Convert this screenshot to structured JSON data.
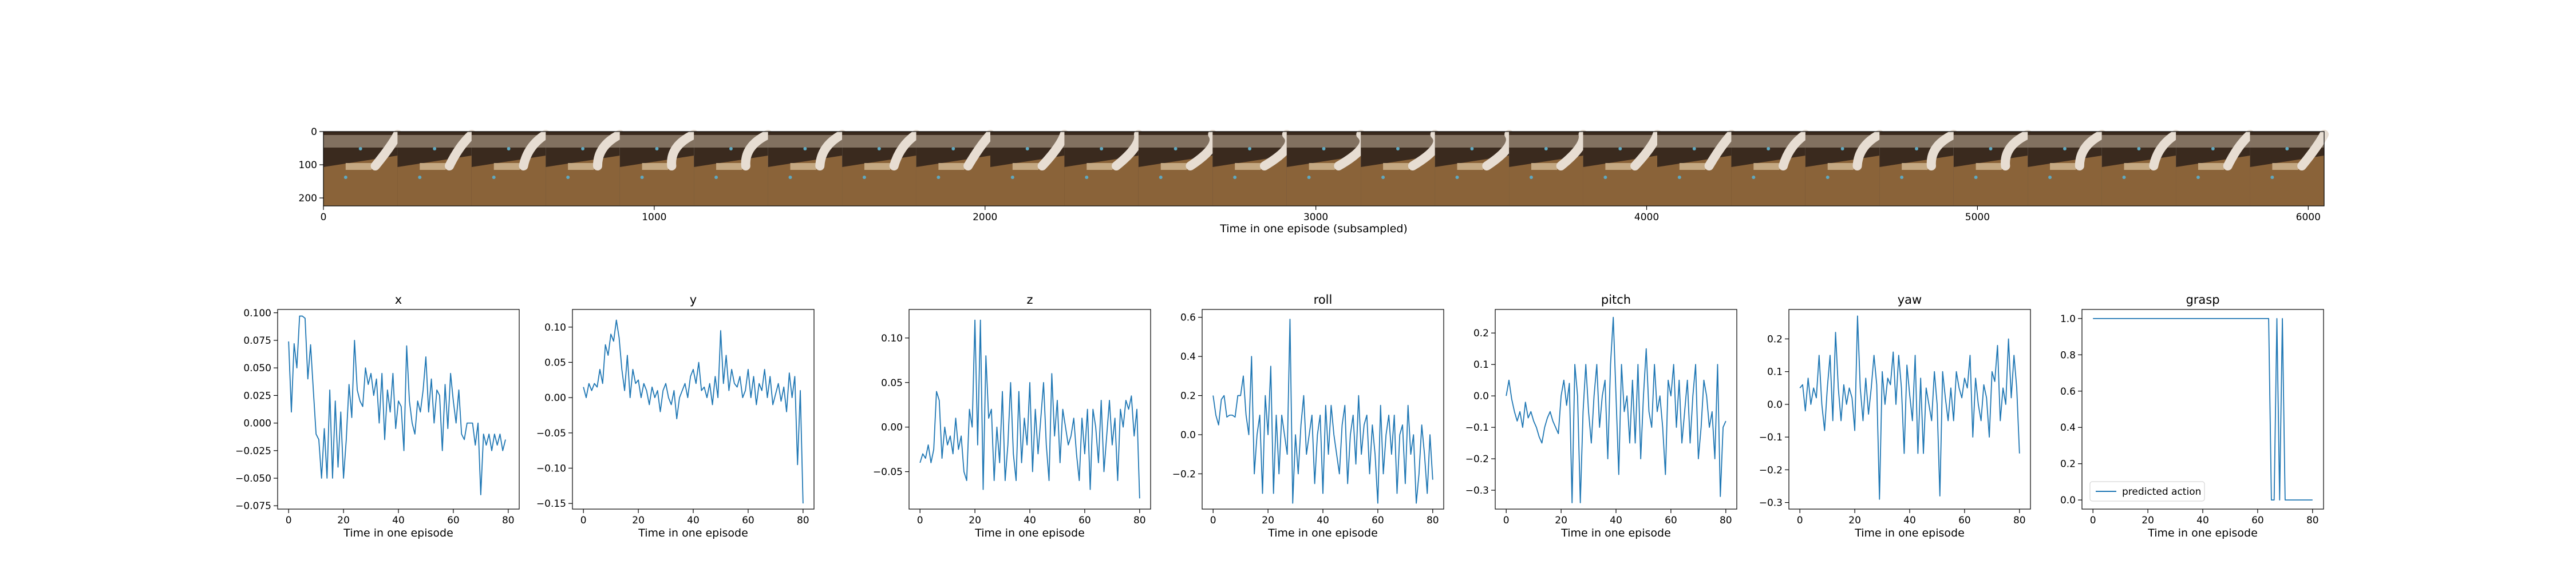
{
  "filmstrip": {
    "xlabel": "Time in one episode (subsampled)",
    "x_ticks": [
      0,
      1000,
      2000,
      3000,
      4000,
      5000,
      6000
    ],
    "y_ticks": [
      0,
      100,
      200
    ],
    "xlim": [
      0,
      6048
    ],
    "ylim": [
      224,
      0
    ],
    "frame_count": 27,
    "colors": {
      "table": "#8a6339",
      "background": "#3a2a1e",
      "arm": "#e7ddd2",
      "wall": "#c9b8a2"
    }
  },
  "line_color": "#1f77b4",
  "chart_data": [
    {
      "type": "line",
      "title": "x",
      "xlabel": "Time in one episode",
      "x_ticks": [
        0,
        20,
        40,
        60,
        80
      ],
      "y_ticks": [
        -0.075,
        -0.05,
        -0.025,
        0.0,
        0.025,
        0.05,
        0.075,
        0.1
      ],
      "y_tick_labels": [
        "−0.075",
        "−0.050",
        "−0.025",
        "0.000",
        "0.025",
        "0.050",
        "0.075",
        "0.100"
      ],
      "xlim": [
        -4,
        84
      ],
      "ylim": [
        -0.078,
        0.103
      ],
      "series": [
        {
          "values": [
            0.074,
            0.01,
            0.072,
            0.05,
            0.097,
            0.097,
            0.095,
            0.04,
            0.071,
            0.03,
            -0.01,
            -0.015,
            -0.05,
            -0.005,
            -0.05,
            0.03,
            -0.05,
            0.02,
            -0.04,
            0.01,
            -0.05,
            -0.015,
            0.035,
            0.005,
            0.075,
            0.03,
            0.02,
            0.015,
            0.05,
            0.035,
            0.045,
            0.025,
            0.04,
            0.0,
            0.045,
            -0.015,
            0.03,
            0.01,
            0.045,
            -0.005,
            0.02,
            0.015,
            -0.025,
            0.07,
            0.02,
            0.0,
            -0.01,
            0.02,
            0.01,
            0.03,
            0.06,
            0.01,
            0.04,
            0.0,
            0.03,
            0.025,
            -0.025,
            0.035,
            -0.005,
            0.045,
            0.02,
            0.0,
            0.03,
            -0.01,
            -0.015,
            0.0,
            0.0,
            0.0,
            -0.02,
            0.0,
            -0.065,
            -0.01,
            -0.02,
            -0.01,
            -0.025,
            -0.01,
            -0.02,
            -0.01,
            -0.025,
            -0.015
          ]
        }
      ]
    },
    {
      "type": "line",
      "title": "y",
      "xlabel": "Time in one episode",
      "x_ticks": [
        0,
        20,
        40,
        60,
        80
      ],
      "y_ticks": [
        -0.15,
        -0.1,
        -0.05,
        0.0,
        0.05,
        0.1
      ],
      "y_tick_labels": [
        "−0.15",
        "−0.10",
        "−0.05",
        "0.00",
        "0.05",
        "0.10"
      ],
      "xlim": [
        -4,
        84
      ],
      "ylim": [
        -0.158,
        0.125
      ],
      "series": [
        {
          "values": [
            0.015,
            0.0,
            0.02,
            0.01,
            0.02,
            0.015,
            0.04,
            0.02,
            0.075,
            0.06,
            0.09,
            0.08,
            0.11,
            0.085,
            0.04,
            0.01,
            0.06,
            0.0,
            0.04,
            0.02,
            0.025,
            0.0,
            0.02,
            0.01,
            -0.01,
            0.015,
            0.0,
            0.01,
            -0.02,
            0.01,
            0.02,
            0.0,
            -0.01,
            0.01,
            -0.03,
            0.0,
            0.01,
            0.02,
            0.0,
            0.03,
            0.04,
            0.02,
            0.05,
            0.01,
            0.015,
            0.0,
            0.02,
            -0.01,
            0.03,
            0.0,
            0.095,
            0.02,
            0.06,
            0.01,
            0.04,
            0.02,
            0.015,
            0.03,
            0.0,
            0.01,
            0.04,
            0.0,
            0.03,
            -0.01,
            0.02,
            0.01,
            0.04,
            0.0,
            0.03,
            -0.01,
            0.005,
            0.02,
            -0.005,
            0.015,
            -0.02,
            0.035,
            0.0,
            0.03,
            -0.095,
            0.01,
            -0.15
          ]
        }
      ]
    },
    {
      "type": "line",
      "title": "z",
      "xlabel": "Time in one episode",
      "x_ticks": [
        0,
        20,
        40,
        60,
        80
      ],
      "y_ticks": [
        -0.05,
        0.0,
        0.05,
        0.1
      ],
      "y_tick_labels": [
        "−0.05",
        "0.00",
        "0.05",
        "0.10"
      ],
      "xlim": [
        -4,
        84
      ],
      "ylim": [
        -0.092,
        0.132
      ],
      "series": [
        {
          "values": [
            -0.04,
            -0.03,
            -0.035,
            -0.02,
            -0.04,
            -0.025,
            0.04,
            0.03,
            -0.035,
            0.0,
            -0.02,
            -0.01,
            -0.03,
            0.01,
            -0.025,
            -0.01,
            -0.05,
            -0.06,
            0.02,
            0.0,
            0.12,
            -0.02,
            0.12,
            -0.07,
            0.08,
            0.01,
            0.02,
            -0.06,
            0.0,
            -0.04,
            0.04,
            -0.06,
            -0.02,
            0.05,
            -0.03,
            -0.06,
            0.04,
            -0.04,
            0.01,
            -0.02,
            0.05,
            -0.05,
            0.02,
            -0.03,
            0.01,
            0.05,
            -0.02,
            -0.06,
            0.06,
            -0.01,
            0.03,
            -0.04,
            0.02,
            0.0,
            -0.02,
            -0.01,
            0.01,
            -0.03,
            -0.06,
            0.01,
            -0.03,
            0.02,
            -0.07,
            0.02,
            0.0,
            -0.04,
            0.03,
            -0.05,
            -0.01,
            0.03,
            -0.02,
            0.01,
            -0.06,
            0.02,
            0.0,
            0.03,
            0.02,
            0.035,
            -0.01,
            0.02,
            -0.08
          ]
        }
      ]
    },
    {
      "type": "line",
      "title": "roll",
      "xlabel": "Time in one episode",
      "x_ticks": [
        0,
        20,
        40,
        60,
        80
      ],
      "y_ticks": [
        -0.2,
        0.0,
        0.2,
        0.4,
        0.6
      ],
      "y_tick_labels": [
        "−0.2",
        "0.0",
        "0.2",
        "0.4",
        "0.6"
      ],
      "xlim": [
        -4,
        84
      ],
      "ylim": [
        -0.38,
        0.64
      ],
      "series": [
        {
          "values": [
            0.2,
            0.1,
            0.05,
            0.18,
            0.2,
            0.09,
            0.1,
            0.1,
            0.09,
            0.2,
            0.2,
            0.3,
            0.1,
            0.0,
            0.4,
            -0.2,
            0.0,
            0.1,
            -0.3,
            0.2,
            0.0,
            0.35,
            -0.3,
            0.1,
            -0.2,
            0.1,
            0.0,
            -0.1,
            0.59,
            -0.35,
            0.0,
            -0.2,
            0.05,
            0.2,
            -0.1,
            0.0,
            0.1,
            -0.25,
            0.0,
            0.1,
            -0.3,
            0.15,
            -0.1,
            0.15,
            0.0,
            -0.1,
            -0.2,
            0.05,
            0.15,
            -0.25,
            0.0,
            0.1,
            -0.15,
            0.2,
            -0.1,
            0.05,
            0.1,
            -0.2,
            0.05,
            -0.1,
            -0.35,
            0.15,
            -0.2,
            0.0,
            0.1,
            -0.1,
            0.1,
            -0.3,
            0.0,
            0.05,
            -0.25,
            0.15,
            -0.1,
            0.0,
            -0.35,
            -0.2,
            0.05,
            -0.1,
            -0.3,
            0.0,
            -0.23
          ]
        }
      ]
    },
    {
      "type": "line",
      "title": "pitch",
      "xlabel": "Time in one episode",
      "x_ticks": [
        0,
        20,
        40,
        60,
        80
      ],
      "y_ticks": [
        -0.3,
        -0.2,
        -0.1,
        0.0,
        0.1,
        0.2
      ],
      "y_tick_labels": [
        "−0.3",
        "−0.2",
        "−0.1",
        "0.0",
        "0.1",
        "0.2"
      ],
      "xlim": [
        -4,
        84
      ],
      "ylim": [
        -0.36,
        0.275
      ],
      "series": [
        {
          "values": [
            0.0,
            0.05,
            -0.01,
            -0.05,
            -0.08,
            -0.05,
            -0.1,
            -0.02,
            -0.07,
            -0.05,
            -0.08,
            -0.1,
            -0.13,
            -0.15,
            -0.1,
            -0.07,
            -0.05,
            -0.08,
            -0.1,
            -0.12,
            0.0,
            0.05,
            -0.03,
            0.04,
            -0.34,
            0.1,
            0.0,
            -0.34,
            -0.05,
            0.1,
            -0.05,
            -0.15,
            0.0,
            0.1,
            -0.1,
            0.0,
            0.05,
            -0.2,
            0.1,
            0.25,
            0.0,
            -0.25,
            0.1,
            -0.05,
            0.0,
            -0.15,
            0.05,
            -0.15,
            0.1,
            -0.2,
            0.0,
            0.15,
            -0.05,
            -0.1,
            0.1,
            -0.05,
            0.0,
            -0.1,
            -0.25,
            0.05,
            0.0,
            0.1,
            -0.1,
            0.05,
            -0.15,
            -0.05,
            0.05,
            -0.15,
            0.0,
            0.1,
            -0.2,
            -0.1,
            0.05,
            0.0,
            -0.1,
            -0.05,
            -0.2,
            0.1,
            -0.32,
            -0.1,
            -0.08
          ]
        }
      ]
    },
    {
      "type": "line",
      "title": "yaw",
      "xlabel": "Time in one episode",
      "x_ticks": [
        0,
        20,
        40,
        60,
        80
      ],
      "y_ticks": [
        -0.3,
        -0.2,
        -0.1,
        0.0,
        0.1,
        0.2
      ],
      "y_tick_labels": [
        "−0.3",
        "−0.2",
        "−0.1",
        "0.0",
        "0.1",
        "0.2"
      ],
      "xlim": [
        -4,
        84
      ],
      "ylim": [
        -0.32,
        0.29
      ],
      "series": [
        {
          "values": [
            0.05,
            0.06,
            -0.02,
            0.08,
            0.0,
            0.05,
            0.02,
            0.15,
            0.0,
            -0.08,
            0.05,
            0.15,
            -0.05,
            0.22,
            0.05,
            -0.05,
            0.06,
            0.0,
            0.05,
            0.02,
            -0.08,
            0.27,
            0.05,
            -0.05,
            0.08,
            -0.03,
            0.05,
            0.15,
            0.06,
            -0.29,
            0.1,
            0.0,
            0.08,
            0.06,
            0.16,
            0.0,
            0.15,
            0.05,
            -0.15,
            0.12,
            0.03,
            -0.05,
            0.15,
            -0.15,
            0.08,
            -0.15,
            0.05,
            0.0,
            -0.05,
            0.1,
            0.0,
            -0.28,
            0.1,
            0.02,
            -0.05,
            0.05,
            -0.05,
            0.1,
            0.05,
            0.02,
            0.08,
            0.05,
            0.15,
            -0.1,
            0.08,
            0.0,
            -0.05,
            0.06,
            0.02,
            -0.1,
            0.1,
            0.07,
            0.18,
            -0.05,
            0.05,
            0.0,
            0.2,
            0.02,
            0.15,
            0.05,
            -0.15
          ]
        }
      ]
    },
    {
      "type": "line",
      "title": "grasp",
      "xlabel": "Time in one episode",
      "x_ticks": [
        0,
        20,
        40,
        60,
        80
      ],
      "y_ticks": [
        0.0,
        0.2,
        0.4,
        0.6,
        0.8,
        1.0
      ],
      "y_tick_labels": [
        "0.0",
        "0.2",
        "0.4",
        "0.6",
        "0.8",
        "1.0"
      ],
      "xlim": [
        -4,
        84
      ],
      "ylim": [
        -0.05,
        1.05
      ],
      "legend_position": "lower-left",
      "series": [
        {
          "name": "predicted action",
          "values": [
            1,
            1,
            1,
            1,
            1,
            1,
            1,
            1,
            1,
            1,
            1,
            1,
            1,
            1,
            1,
            1,
            1,
            1,
            1,
            1,
            1,
            1,
            1,
            1,
            1,
            1,
            1,
            1,
            1,
            1,
            1,
            1,
            1,
            1,
            1,
            1,
            1,
            1,
            1,
            1,
            1,
            1,
            1,
            1,
            1,
            1,
            1,
            1,
            1,
            1,
            1,
            1,
            1,
            1,
            1,
            1,
            1,
            1,
            1,
            1,
            1,
            1,
            1,
            1,
            1,
            0,
            0,
            1,
            0,
            1,
            0,
            0,
            0,
            0,
            0,
            0,
            0,
            0,
            0,
            0,
            0
          ]
        }
      ]
    }
  ]
}
